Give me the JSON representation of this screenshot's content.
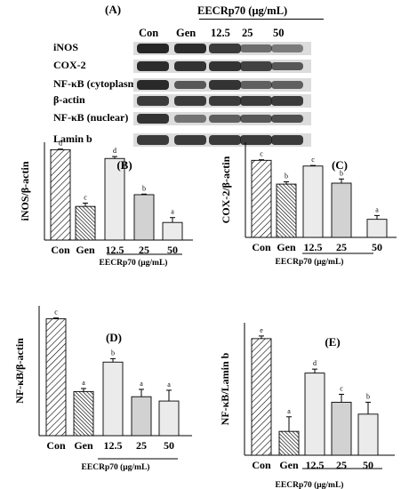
{
  "blot": {
    "panel_label": "(A)",
    "header": "EECRp70 (μg/mL)",
    "lanes": [
      "Con",
      "Gen",
      "12.5",
      "25",
      "50"
    ],
    "rows": [
      {
        "label": "iNOS",
        "intensity": [
          0.95,
          0.9,
          0.8,
          0.45,
          0.35
        ]
      },
      {
        "label": "COX-2",
        "intensity": [
          0.9,
          0.85,
          0.85,
          0.75,
          0.6
        ]
      },
      {
        "label": "NF-κB (cytoplasm)",
        "intensity": [
          0.92,
          0.6,
          0.85,
          0.55,
          0.55
        ]
      },
      {
        "label": "β-actin",
        "intensity": [
          0.8,
          0.8,
          0.8,
          0.8,
          0.8
        ]
      },
      {
        "label": "NF-κB (nuclear)",
        "intensity": [
          0.85,
          0.4,
          0.55,
          0.6,
          0.65
        ]
      },
      {
        "label": "Lamin b",
        "intensity": [
          0.8,
          0.8,
          0.8,
          0.8,
          0.8
        ]
      }
    ]
  },
  "chart_data": [
    {
      "id": "B",
      "type": "bar",
      "panel_label": "(B)",
      "ylabel": "iNOS/β-actin",
      "categories": [
        "Con",
        "Gen",
        "12.5",
        "25",
        "50"
      ],
      "values": [
        4.62,
        1.72,
        4.17,
        2.32,
        0.9
      ],
      "errors": [
        0.03,
        0.17,
        0.1,
        0.03,
        0.25
      ],
      "letters": [
        "d",
        "c",
        "d",
        "b",
        "a"
      ],
      "ylim": [
        0,
        5
      ],
      "xlabel": "EECRp70 (μg/mL)"
    },
    {
      "id": "C",
      "type": "bar",
      "panel_label": "(C)",
      "ylabel": "COX-2/β-actin",
      "categories": [
        "Con",
        "Gen",
        "12.5",
        "25",
        "50"
      ],
      "values": [
        4.05,
        2.8,
        3.75,
        2.85,
        0.95
      ],
      "errors": [
        0.03,
        0.12,
        0.03,
        0.22,
        0.2
      ],
      "letters": [
        "c",
        "b",
        "c",
        "b",
        "a"
      ],
      "ylim": [
        0,
        5
      ],
      "xlabel": "EECRp70 (μg/mL)"
    },
    {
      "id": "D",
      "type": "bar",
      "panel_label": "(D)",
      "ylabel": "NF-κB/β-actin",
      "categories": [
        "Con",
        "Gen",
        "12.5",
        "25",
        "50"
      ],
      "values": [
        2.7,
        1.02,
        1.7,
        0.9,
        0.8
      ],
      "errors": [
        0.02,
        0.07,
        0.08,
        0.17,
        0.25
      ],
      "letters": [
        "c",
        "a",
        "b",
        "a",
        "a"
      ],
      "ylim": [
        0,
        3
      ],
      "xlabel": "EECRp70 (μg/mL)"
    },
    {
      "id": "E",
      "type": "bar",
      "panel_label": "(E)",
      "ylabel": "NF-κB/Lamin b",
      "categories": [
        "Con",
        "Gen",
        "12.5",
        "25",
        "50"
      ],
      "values": [
        4.4,
        0.9,
        3.1,
        2.0,
        1.55
      ],
      "errors": [
        0.1,
        0.55,
        0.15,
        0.3,
        0.45
      ],
      "letters": [
        "e",
        "a",
        "d",
        "c",
        "b"
      ],
      "ylim": [
        0,
        5
      ],
      "xlabel": "EECRp70 (μg/mL)"
    }
  ],
  "styles": {
    "bar_fill_light": "#ebebeb",
    "bar_fill_mid": "#d2d2d2",
    "band_color": "#1e1e1e",
    "blot_bg": "#dcdcdc"
  }
}
